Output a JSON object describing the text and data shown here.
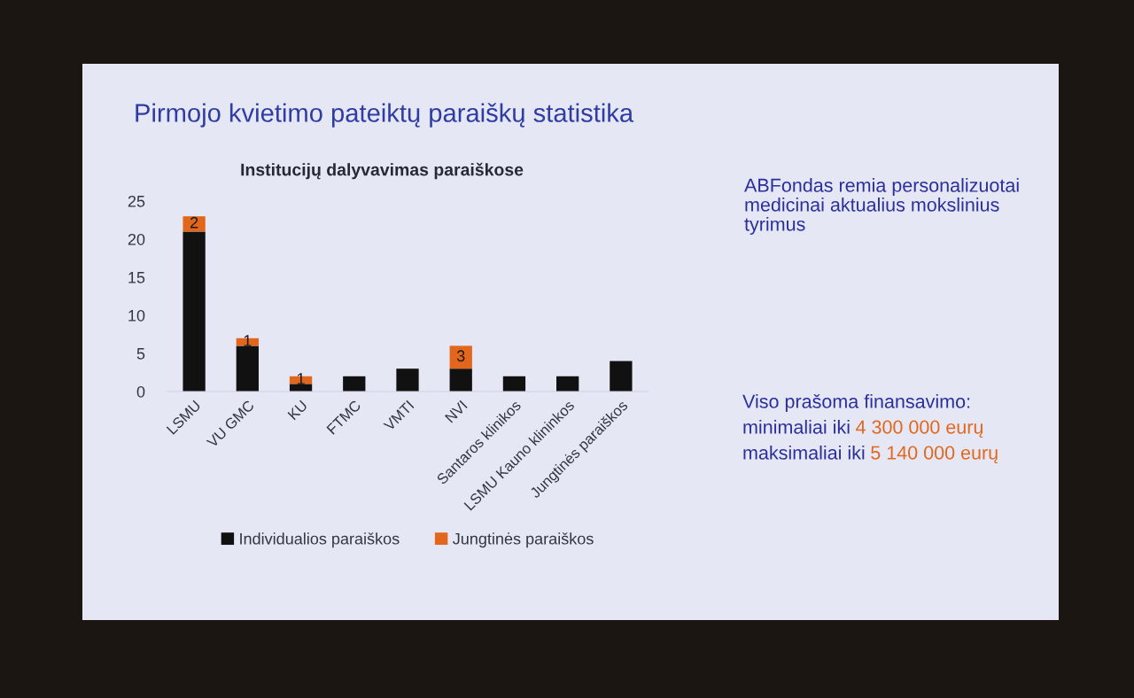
{
  "chart_data": {
    "type": "bar",
    "stacked": true,
    "title": "Pirmojo kvietimo pateiktų paraiškų statistika",
    "subtitle": "Institucijų dalyvavimas paraiškose",
    "categories": [
      "LSMU",
      "VU GMC",
      "KU",
      "FTMC",
      "VMTI",
      "NVI",
      "Santaros klinikos",
      "LSMU Kauno klininkos",
      "Jungtinės paraiškos"
    ],
    "series": [
      {
        "name": "Individualios paraiškos",
        "color": "#111111",
        "values": [
          21,
          6,
          1,
          2,
          3,
          3,
          2,
          2,
          4
        ]
      },
      {
        "name": "Jungtinės paraiškos",
        "color": "#e2661c",
        "values": [
          2,
          1,
          1,
          null,
          null,
          3,
          null,
          null,
          null
        ],
        "value_labels": [
          "2",
          "1",
          "1",
          null,
          null,
          "3",
          null,
          null,
          null
        ]
      }
    ],
    "ylim": [
      0,
      25
    ],
    "yticks": [
      0,
      5,
      10,
      15,
      20,
      25
    ],
    "legend": "bottom",
    "annotations": [
      "ABFondas remia personalizuotai\nmedicinai aktualius mokslinius\ntyrimus",
      "Viso prašoma finansavimo:",
      "minimaliai iki",
      "4 300 000 eurų",
      "maksimaliai iki",
      "5 140 000 eurų"
    ]
  }
}
